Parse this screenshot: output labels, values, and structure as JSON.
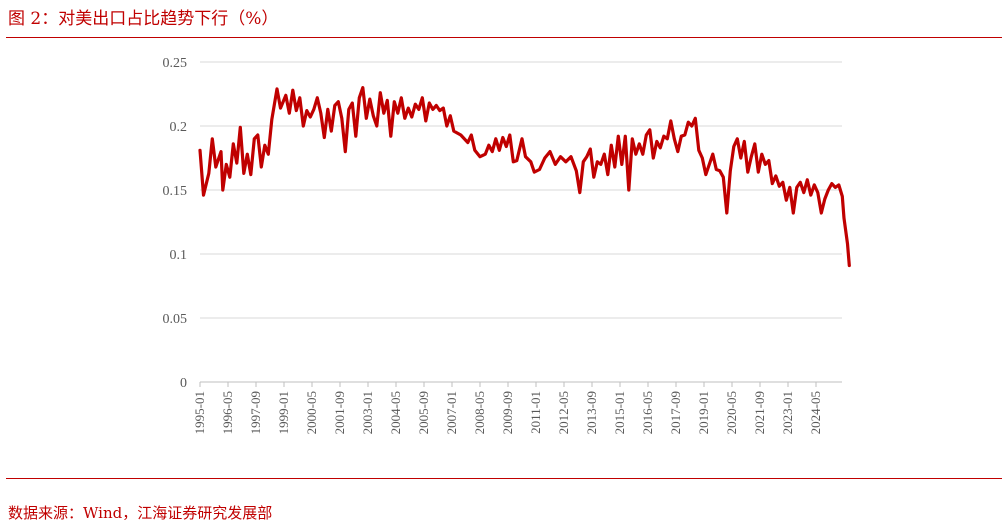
{
  "header": {
    "title": "图 2：对美出口占比趋势下行（%）"
  },
  "footer": {
    "source": "数据来源：Wind，江海证券研究发展部"
  },
  "colors": {
    "accent": "#C00000",
    "line": "#C00000",
    "grid": "#D9D9D9",
    "axis": "#BFBFBF"
  },
  "chart_data": {
    "type": "line",
    "title": "",
    "xlabel": "",
    "ylabel": "",
    "ylim": [
      0,
      0.25
    ],
    "yticks": [
      "0",
      "0.05",
      "0.1",
      "0.15",
      "0.2",
      "0.25"
    ],
    "grid": true,
    "legend": "none",
    "x_ticks": [
      "1995-01",
      "1996-05",
      "1997-09",
      "1999-01",
      "2000-05",
      "2001-09",
      "2003-01",
      "2004-05",
      "2005-09",
      "2007-01",
      "2008-05",
      "2009-09",
      "2011-01",
      "2012-05",
      "2013-09",
      "2015-01",
      "2016-05",
      "2017-09",
      "2019-01",
      "2020-05",
      "2021-09",
      "2023-01",
      "2024-05"
    ],
    "anchors": [
      [
        "1995-01",
        0.181
      ],
      [
        "1995-03",
        0.146
      ],
      [
        "1995-06",
        0.163
      ],
      [
        "1995-08",
        0.19
      ],
      [
        "1995-10",
        0.168
      ],
      [
        "1996-01",
        0.18
      ],
      [
        "1996-02",
        0.15
      ],
      [
        "1996-04",
        0.17
      ],
      [
        "1996-06",
        0.16
      ],
      [
        "1996-08",
        0.186
      ],
      [
        "1996-10",
        0.171
      ],
      [
        "1996-12",
        0.199
      ],
      [
        "1997-02",
        0.163
      ],
      [
        "1997-04",
        0.178
      ],
      [
        "1997-06",
        0.162
      ],
      [
        "1997-08",
        0.19
      ],
      [
        "1997-10",
        0.193
      ],
      [
        "1997-12",
        0.168
      ],
      [
        "1998-02",
        0.185
      ],
      [
        "1998-04",
        0.178
      ],
      [
        "1998-06",
        0.205
      ],
      [
        "1998-09",
        0.229
      ],
      [
        "1998-11",
        0.214
      ],
      [
        "1999-02",
        0.224
      ],
      [
        "1999-04",
        0.21
      ],
      [
        "1999-06",
        0.228
      ],
      [
        "1999-08",
        0.212
      ],
      [
        "1999-10",
        0.222
      ],
      [
        "1999-12",
        0.2
      ],
      [
        "2000-02",
        0.212
      ],
      [
        "2000-04",
        0.207
      ],
      [
        "2000-06",
        0.213
      ],
      [
        "2000-08",
        0.222
      ],
      [
        "2000-10",
        0.21
      ],
      [
        "2000-12",
        0.191
      ],
      [
        "2001-02",
        0.213
      ],
      [
        "2001-04",
        0.196
      ],
      [
        "2001-06",
        0.216
      ],
      [
        "2001-08",
        0.219
      ],
      [
        "2001-10",
        0.206
      ],
      [
        "2001-12",
        0.18
      ],
      [
        "2002-02",
        0.213
      ],
      [
        "2002-04",
        0.218
      ],
      [
        "2002-06",
        0.192
      ],
      [
        "2002-08",
        0.222
      ],
      [
        "2002-10",
        0.23
      ],
      [
        "2002-12",
        0.206
      ],
      [
        "2003-02",
        0.221
      ],
      [
        "2003-04",
        0.208
      ],
      [
        "2003-06",
        0.2
      ],
      [
        "2003-08",
        0.226
      ],
      [
        "2003-10",
        0.21
      ],
      [
        "2003-12",
        0.22
      ],
      [
        "2004-02",
        0.192
      ],
      [
        "2004-04",
        0.219
      ],
      [
        "2004-06",
        0.21
      ],
      [
        "2004-08",
        0.222
      ],
      [
        "2004-10",
        0.206
      ],
      [
        "2004-12",
        0.214
      ],
      [
        "2005-02",
        0.207
      ],
      [
        "2005-04",
        0.217
      ],
      [
        "2005-06",
        0.213
      ],
      [
        "2005-08",
        0.222
      ],
      [
        "2005-10",
        0.204
      ],
      [
        "2005-12",
        0.218
      ],
      [
        "2006-02",
        0.213
      ],
      [
        "2006-04",
        0.216
      ],
      [
        "2006-06",
        0.212
      ],
      [
        "2006-08",
        0.214
      ],
      [
        "2006-10",
        0.2
      ],
      [
        "2006-12",
        0.208
      ],
      [
        "2007-02",
        0.196
      ],
      [
        "2007-06",
        0.193
      ],
      [
        "2007-10",
        0.187
      ],
      [
        "2007-12",
        0.193
      ],
      [
        "2008-02",
        0.181
      ],
      [
        "2008-05",
        0.176
      ],
      [
        "2008-08",
        0.178
      ],
      [
        "2008-10",
        0.185
      ],
      [
        "2008-12",
        0.18
      ],
      [
        "2009-02",
        0.19
      ],
      [
        "2009-04",
        0.181
      ],
      [
        "2009-06",
        0.191
      ],
      [
        "2009-08",
        0.184
      ],
      [
        "2009-10",
        0.193
      ],
      [
        "2009-12",
        0.172
      ],
      [
        "2010-02",
        0.173
      ],
      [
        "2010-05",
        0.19
      ],
      [
        "2010-07",
        0.176
      ],
      [
        "2010-10",
        0.172
      ],
      [
        "2010-12",
        0.164
      ],
      [
        "2011-03",
        0.166
      ],
      [
        "2011-06",
        0.175
      ],
      [
        "2011-09",
        0.18
      ],
      [
        "2011-12",
        0.17
      ],
      [
        "2012-03",
        0.176
      ],
      [
        "2012-06",
        0.172
      ],
      [
        "2012-09",
        0.176
      ],
      [
        "2012-12",
        0.165
      ],
      [
        "2013-02",
        0.148
      ],
      [
        "2013-04",
        0.172
      ],
      [
        "2013-06",
        0.176
      ],
      [
        "2013-08",
        0.182
      ],
      [
        "2013-10",
        0.16
      ],
      [
        "2013-12",
        0.172
      ],
      [
        "2014-02",
        0.17
      ],
      [
        "2014-04",
        0.178
      ],
      [
        "2014-06",
        0.162
      ],
      [
        "2014-08",
        0.185
      ],
      [
        "2014-10",
        0.168
      ],
      [
        "2014-12",
        0.192
      ],
      [
        "2015-02",
        0.17
      ],
      [
        "2015-04",
        0.192
      ],
      [
        "2015-06",
        0.15
      ],
      [
        "2015-08",
        0.19
      ],
      [
        "2015-10",
        0.178
      ],
      [
        "2015-12",
        0.186
      ],
      [
        "2016-02",
        0.178
      ],
      [
        "2016-04",
        0.193
      ],
      [
        "2016-06",
        0.197
      ],
      [
        "2016-08",
        0.175
      ],
      [
        "2016-10",
        0.188
      ],
      [
        "2016-12",
        0.183
      ],
      [
        "2017-02",
        0.192
      ],
      [
        "2017-04",
        0.19
      ],
      [
        "2017-06",
        0.204
      ],
      [
        "2017-08",
        0.19
      ],
      [
        "2017-10",
        0.18
      ],
      [
        "2017-12",
        0.192
      ],
      [
        "2018-02",
        0.193
      ],
      [
        "2018-04",
        0.203
      ],
      [
        "2018-06",
        0.2
      ],
      [
        "2018-08",
        0.206
      ],
      [
        "2018-10",
        0.181
      ],
      [
        "2018-12",
        0.175
      ],
      [
        "2019-02",
        0.162
      ],
      [
        "2019-04",
        0.17
      ],
      [
        "2019-06",
        0.178
      ],
      [
        "2019-08",
        0.166
      ],
      [
        "2019-10",
        0.165
      ],
      [
        "2019-12",
        0.16
      ],
      [
        "2020-02",
        0.132
      ],
      [
        "2020-04",
        0.165
      ],
      [
        "2020-06",
        0.184
      ],
      [
        "2020-08",
        0.19
      ],
      [
        "2020-10",
        0.175
      ],
      [
        "2020-12",
        0.188
      ],
      [
        "2021-02",
        0.164
      ],
      [
        "2021-04",
        0.176
      ],
      [
        "2021-06",
        0.186
      ],
      [
        "2021-08",
        0.164
      ],
      [
        "2021-10",
        0.178
      ],
      [
        "2021-12",
        0.17
      ],
      [
        "2022-02",
        0.173
      ],
      [
        "2022-04",
        0.155
      ],
      [
        "2022-06",
        0.161
      ],
      [
        "2022-08",
        0.153
      ],
      [
        "2022-10",
        0.156
      ],
      [
        "2022-12",
        0.142
      ],
      [
        "2023-02",
        0.152
      ],
      [
        "2023-04",
        0.132
      ],
      [
        "2023-06",
        0.152
      ],
      [
        "2023-08",
        0.156
      ],
      [
        "2023-10",
        0.148
      ],
      [
        "2023-12",
        0.158
      ],
      [
        "2024-02",
        0.146
      ],
      [
        "2024-04",
        0.154
      ],
      [
        "2024-06",
        0.148
      ],
      [
        "2024-08",
        0.132
      ],
      [
        "2024-10",
        0.143
      ],
      [
        "2024-12",
        0.15
      ],
      [
        "2025-02",
        0.155
      ],
      [
        "2025-04",
        0.152
      ],
      [
        "2025-06",
        0.154
      ],
      [
        "2025-08",
        0.145
      ],
      [
        "2025-09",
        0.128
      ],
      [
        "2025-11",
        0.108
      ],
      [
        "2025-12",
        0.091
      ]
    ]
  }
}
